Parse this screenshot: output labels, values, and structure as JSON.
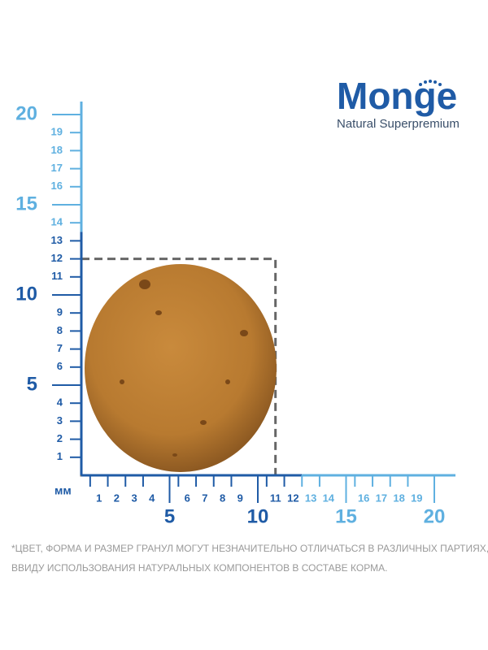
{
  "logo": {
    "brand": "Monge",
    "tagline": "Natural Superpremium"
  },
  "ruler": {
    "unit": "мм",
    "minor_ticks": [
      1,
      2,
      3,
      4,
      6,
      7,
      8,
      9,
      11,
      12,
      13,
      14,
      16,
      17,
      18,
      19
    ],
    "major_ticks": [
      5,
      10,
      15,
      20
    ],
    "x_light_from": 13,
    "y_light_from": 14,
    "dark_color": "#1f5ba6",
    "light_color": "#5fb0e0"
  },
  "kibble": {
    "width": 11,
    "height": 12
  },
  "note": [
    "*ЦВЕТ, ФОРМА И РАЗМЕР ГРАНУЛ МОГУТ НЕЗНАЧИТЕЛЬНО ОТЛИЧАТЬСЯ В РАЗЛИЧНЫХ ПАРТИЯХ,",
    "ВВИДУ ИСПОЛЬЗОВАНИЯ НАТУРАЛЬНЫХ КОМПОНЕНТОВ В СОСТАВЕ КОРМА."
  ]
}
